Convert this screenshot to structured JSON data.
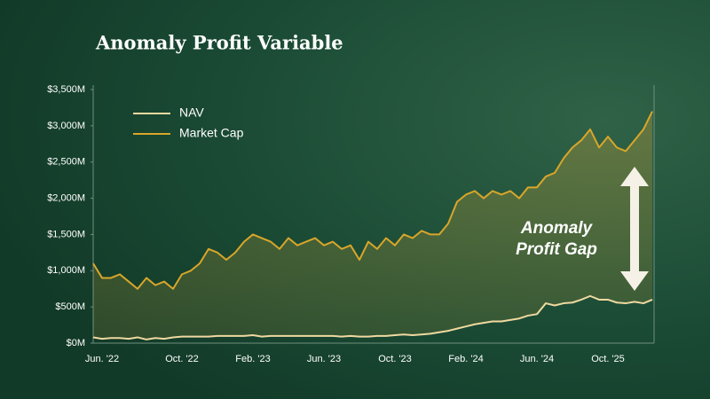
{
  "chart_data": {
    "type": "line",
    "title": "Anomaly Profit Variable",
    "categories": [
      null,
      "Jun. '22",
      null,
      null,
      null,
      null,
      null,
      null,
      null,
      null,
      "Oct. '22",
      null,
      null,
      null,
      null,
      null,
      null,
      null,
      "Feb. '23",
      null,
      null,
      null,
      null,
      null,
      null,
      null,
      "Jun. '23",
      null,
      null,
      null,
      null,
      null,
      null,
      null,
      "Oct. '23",
      null,
      null,
      null,
      null,
      null,
      null,
      null,
      "Feb. '24",
      null,
      null,
      null,
      null,
      null,
      null,
      null,
      "Jun. '24",
      null,
      null,
      null,
      null,
      null,
      null,
      null,
      "Oct. '25",
      null,
      null,
      null,
      null,
      null
    ],
    "series": [
      {
        "name": "NAV",
        "color": "#efd9a0",
        "values": [
          80,
          60,
          70,
          70,
          60,
          80,
          50,
          70,
          60,
          80,
          90,
          90,
          90,
          90,
          100,
          100,
          100,
          100,
          110,
          90,
          100,
          100,
          100,
          100,
          100,
          100,
          100,
          100,
          90,
          100,
          90,
          90,
          100,
          100,
          110,
          120,
          110,
          120,
          130,
          150,
          170,
          200,
          230,
          260,
          280,
          300,
          300,
          320,
          340,
          380,
          400,
          550,
          520,
          550,
          560,
          600,
          650,
          600,
          600,
          560,
          550,
          570,
          550,
          600
        ]
      },
      {
        "name": "Market Cap",
        "color": "#d9a62a",
        "values": [
          1100,
          900,
          900,
          950,
          850,
          750,
          900,
          800,
          850,
          750,
          950,
          1000,
          1100,
          1300,
          1250,
          1150,
          1250,
          1400,
          1500,
          1450,
          1400,
          1300,
          1450,
          1350,
          1400,
          1450,
          1350,
          1400,
          1300,
          1350,
          1150,
          1400,
          1300,
          1450,
          1350,
          1500,
          1450,
          1550,
          1500,
          1500,
          1650,
          1950,
          2050,
          2100,
          2000,
          2100,
          2050,
          2100,
          2000,
          2150,
          2150,
          2300,
          2350,
          2550,
          2700,
          2800,
          2950,
          2700,
          2850,
          2700,
          2650,
          2800,
          2950,
          3200
        ]
      }
    ],
    "ylim": [
      0,
      3500
    ],
    "yticks": [
      {
        "value": 0,
        "label": "$0M"
      },
      {
        "value": 500,
        "label": "$500M"
      },
      {
        "value": 1000,
        "label": "$1,000M"
      },
      {
        "value": 1500,
        "label": "$1,500M"
      },
      {
        "value": 2000,
        "label": "$2,000M"
      },
      {
        "value": 2500,
        "label": "$2,500M"
      },
      {
        "value": 3000,
        "label": "$3,000M"
      },
      {
        "value": 3500,
        "label": "$3,500M"
      }
    ],
    "annotation": [
      "Anomaly",
      "Profit Gap"
    ],
    "legend": "upper-left"
  }
}
